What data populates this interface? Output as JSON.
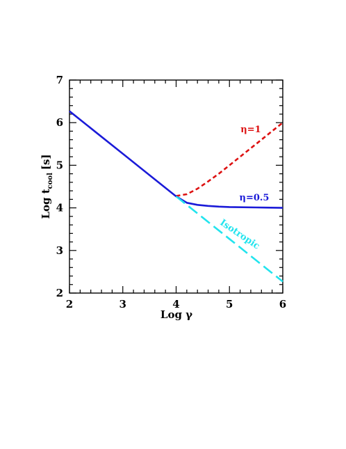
{
  "chart_data": {
    "type": "line",
    "xlabel": "Log γ",
    "ylabel_main": "Log t",
    "ylabel_sub": "cool",
    "ylabel_unit": "[s]",
    "xlim": [
      2,
      6
    ],
    "ylim": [
      2,
      7
    ],
    "xticks": [
      "2",
      "3",
      "4",
      "5",
      "6"
    ],
    "yticks": [
      "2",
      "3",
      "4",
      "5",
      "6",
      "7"
    ],
    "grid": false,
    "series": [
      {
        "name": "η=1",
        "color": "#dd1111",
        "style": "short-dash",
        "x": [
          4.0,
          4.2,
          4.4,
          4.6,
          4.8,
          5.0,
          5.2,
          5.4,
          5.6,
          5.8,
          6.0
        ],
        "y": [
          4.28,
          4.32,
          4.45,
          4.62,
          4.8,
          5.0,
          5.2,
          5.4,
          5.6,
          5.8,
          6.0
        ]
      },
      {
        "name": "η=0.5",
        "color": "#1a1ad8",
        "style": "solid",
        "x": [
          2.0,
          2.5,
          3.0,
          3.5,
          4.0,
          4.2,
          4.4,
          4.6,
          4.8,
          5.0,
          5.5,
          6.0
        ],
        "y": [
          6.27,
          5.77,
          5.27,
          4.77,
          4.27,
          4.12,
          4.07,
          4.045,
          4.03,
          4.02,
          4.01,
          4.0
        ]
      },
      {
        "name": "Isotropic",
        "color": "#22e4ee",
        "style": "long-dash",
        "x": [
          4.0,
          4.5,
          5.0,
          5.5,
          6.0
        ],
        "y": [
          4.27,
          3.77,
          3.27,
          2.77,
          2.27
        ]
      }
    ],
    "annotations": [
      {
        "text": "η=1",
        "color": "#dd1111"
      },
      {
        "text": "η=0.5",
        "color": "#1a1ad8"
      },
      {
        "text": "Isotropic",
        "color": "#22e4ee"
      }
    ]
  }
}
